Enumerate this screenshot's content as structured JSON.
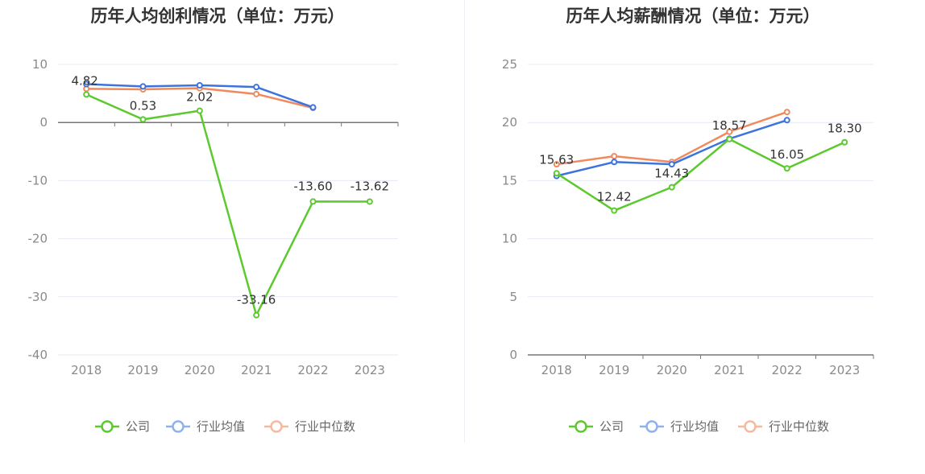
{
  "charts": [
    {
      "title": "历年人均创利情况（单位：万元）",
      "chart_data": {
        "type": "line",
        "title": "历年人均创利情况（单位：万元）",
        "categories": [
          "2018",
          "2019",
          "2020",
          "2021",
          "2022",
          "2023"
        ],
        "ylim": [
          -40,
          10
        ],
        "yticks": [
          10,
          0,
          -10,
          -20,
          -30,
          -40
        ],
        "grid": true,
        "legend": "bottom",
        "series": [
          {
            "name": "公司",
            "color": "#5cc92e",
            "values": [
              4.82,
              0.53,
              2.02,
              -33.16,
              -13.6,
              -13.62
            ],
            "labels": [
              "4.82",
              "0.53",
              "2.02",
              "-33.16",
              "-13.60",
              "-13.62"
            ]
          },
          {
            "name": "行业均值",
            "color": "#3d73dd",
            "values": [
              6.6,
              6.2,
              6.4,
              6.1,
              2.6,
              null
            ]
          },
          {
            "name": "行业中位数",
            "color": "#f08a5d",
            "values": [
              5.8,
              5.7,
              5.9,
              4.9,
              2.5,
              null
            ]
          }
        ]
      }
    },
    {
      "title": "历年人均薪酬情况（单位：万元）",
      "chart_data": {
        "type": "line",
        "title": "历年人均薪酬情况（单位：万元）",
        "categories": [
          "2018",
          "2019",
          "2020",
          "2021",
          "2022",
          "2023"
        ],
        "ylim": [
          0,
          25
        ],
        "yticks": [
          25,
          20,
          15,
          10,
          5,
          0
        ],
        "grid": true,
        "legend": "bottom",
        "series": [
          {
            "name": "公司",
            "color": "#5cc92e",
            "values": [
              15.63,
              12.42,
              14.43,
              18.57,
              16.05,
              18.3
            ],
            "labels": [
              "15.63",
              "12.42",
              "14.43",
              "18.57",
              "16.05",
              "18.30"
            ]
          },
          {
            "name": "行业均值",
            "color": "#3d73dd",
            "values": [
              15.4,
              16.6,
              16.4,
              18.6,
              20.2,
              null
            ]
          },
          {
            "name": "行业中位数",
            "color": "#f08a5d",
            "values": [
              16.4,
              17.1,
              16.6,
              19.2,
              20.9,
              null
            ]
          }
        ]
      }
    }
  ],
  "legend": {
    "company": "公司",
    "industry_avg": "行业均值",
    "industry_median": "行业中位数"
  }
}
